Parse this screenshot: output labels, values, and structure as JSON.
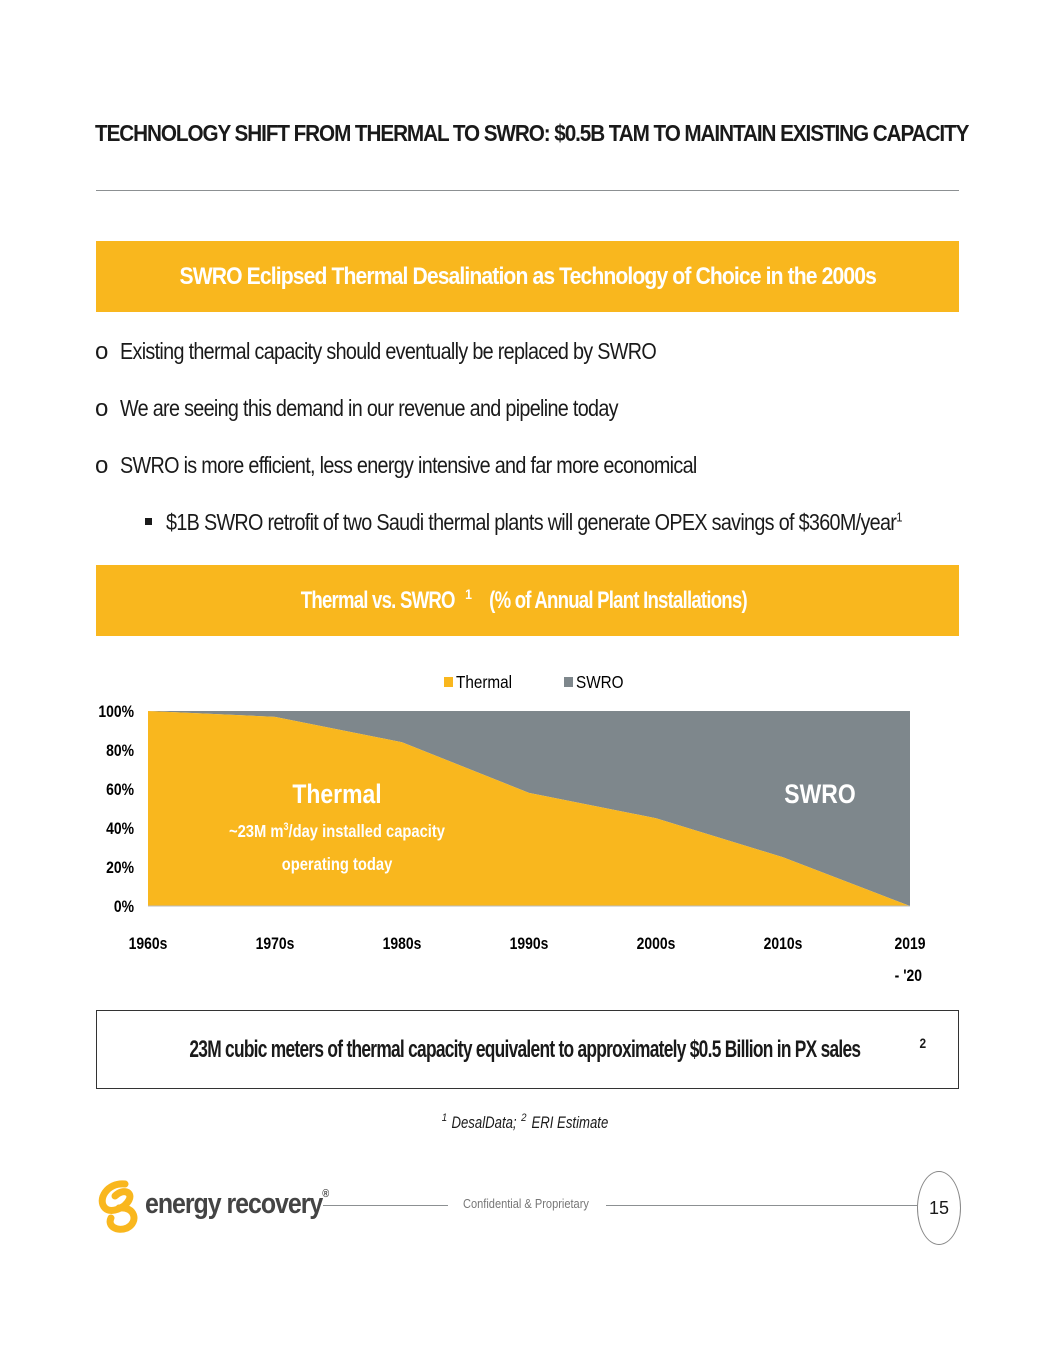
{
  "title": "TECHNOLOGY SHIFT FROM THERMAL TO SWRO: $0.5B TAM TO MAINTAIN EXISTING CAPACITY",
  "banner1": "SWRO Eclipsed Thermal Desalination as Technology of Choice in the 2000s",
  "bullet_marker": "o",
  "bullets": [
    "Existing thermal capacity should eventually be replaced by SWRO",
    "We are seeing this demand in our revenue and pipeline today",
    "SWRO is more efficient, less energy intensive and far more economical"
  ],
  "sub_bullet": {
    "text": "$1B SWRO retrofit of two Saudi thermal plants will generate OPEX savings of $360M/year",
    "sup": "1"
  },
  "banner2": {
    "pre": "Thermal vs. SWRO",
    "sup": "1",
    "post": " (% of Annual Plant Installations)"
  },
  "chart_data": {
    "type": "area",
    "stacked": true,
    "categories": [
      "1960s",
      "1970s",
      "1980s",
      "1990s",
      "2000s",
      "2010s",
      "2019 - '20"
    ],
    "series": [
      {
        "name": "Thermal",
        "values": [
          100,
          97,
          84,
          58,
          45,
          25,
          0
        ],
        "color": "#f9b71e"
      },
      {
        "name": "SWRO",
        "values": [
          0,
          3,
          16,
          42,
          55,
          75,
          100
        ],
        "color": "#7e878c"
      }
    ],
    "ylim": [
      0,
      100
    ],
    "yticks": [
      "0%",
      "20%",
      "40%",
      "60%",
      "80%",
      "100%"
    ],
    "legend_position": "top",
    "annotations": {
      "thermal_label": "Thermal",
      "thermal_note_1a": "~23M m",
      "thermal_note_sup": "3",
      "thermal_note_1b": "/day installed capacity",
      "thermal_note_2": "operating today",
      "swro_label": "SWRO"
    }
  },
  "callout": {
    "text": "23M cubic meters of thermal capacity equivalent to approximately $0.5 Billion in PX sales",
    "sup": "2"
  },
  "source": {
    "sup1": "1",
    "text1": "DesalData; ",
    "sup2": "2",
    "text2": "ERI Estimate"
  },
  "footer": {
    "logo_text": "energy recovery",
    "reg": "®",
    "confidential": "Confidential & Proprietary",
    "page": "15"
  },
  "colors": {
    "accent": "#f9b71e",
    "swro": "#7e878c",
    "rule": "#8c9092"
  }
}
